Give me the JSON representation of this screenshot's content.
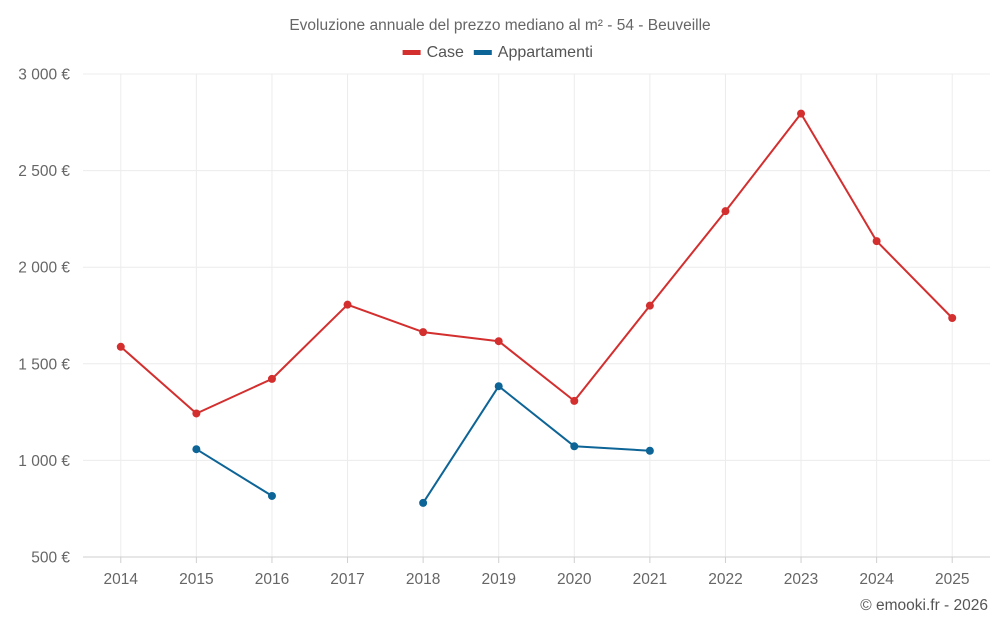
{
  "chart_data": {
    "type": "line",
    "title": "Evoluzione annuale del prezzo mediano al m² - 54 - Beuveille",
    "categories": [
      "2014",
      "2015",
      "2016",
      "2017",
      "2018",
      "2019",
      "2020",
      "2021",
      "2022",
      "2023",
      "2024",
      "2025"
    ],
    "series": [
      {
        "name": "Case",
        "color": "#d32f2f",
        "values": [
          1588,
          1243,
          1422,
          1806,
          1664,
          1617,
          1308,
          1801,
          2290,
          2795,
          2135,
          1737
        ]
      },
      {
        "name": "Appartamenti",
        "color": "#0d6496",
        "values": [
          null,
          1058,
          816,
          null,
          780,
          1384,
          1073,
          1050,
          null,
          null,
          null,
          null
        ]
      }
    ],
    "ylim": [
      500,
      3000
    ],
    "yticks": [
      500,
      1000,
      1500,
      2000,
      2500,
      3000
    ],
    "ytick_labels": [
      "500 €",
      "1 000 €",
      "1 500 €",
      "2 000 €",
      "2 500 €",
      "3 000 €"
    ],
    "xlabel": "",
    "ylabel": "",
    "grid": true,
    "legend_position": "top-center"
  },
  "credit": "© emooki.fr - 2026"
}
